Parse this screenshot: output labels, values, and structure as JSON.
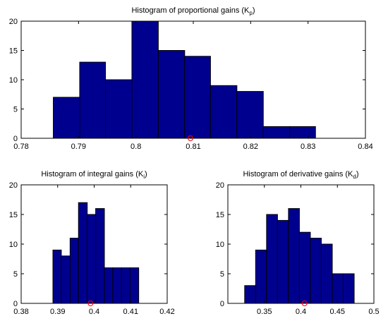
{
  "colors": {
    "bar": "#00008f",
    "bar_edge": "#000000",
    "marker": "#ff0000"
  },
  "chart_data": [
    {
      "type": "bar",
      "title_main": "Histogram of proportional gains (K",
      "title_sub": "p",
      "title_end": ")",
      "xlim": [
        0.78,
        0.84
      ],
      "ylim": [
        0,
        20
      ],
      "xticks": [
        0.78,
        0.79,
        0.8,
        0.81,
        0.82,
        0.83,
        0.84
      ],
      "xtick_labels": [
        "0.78",
        "0.79",
        "0.8",
        "0.81",
        "0.82",
        "0.83",
        "0.84"
      ],
      "yticks": [
        0,
        5,
        10,
        15,
        20
      ],
      "ytick_labels": [
        "0",
        "5",
        "10",
        "15",
        "20"
      ],
      "bin_edges": [
        0.7856,
        0.7902,
        0.7947,
        0.7993,
        0.8039,
        0.8085,
        0.813,
        0.8176,
        0.8222,
        0.8268,
        0.8313
      ],
      "values": [
        7,
        13,
        10,
        20,
        15,
        14,
        9,
        8,
        2,
        2
      ],
      "marker_x": 0.8095
    },
    {
      "type": "bar",
      "title_main": "Histogram of integral gains (K",
      "title_sub": "i",
      "title_end": ")",
      "xlim": [
        0.38,
        0.42
      ],
      "ylim": [
        0,
        20
      ],
      "xticks": [
        0.38,
        0.39,
        0.4,
        0.41,
        0.42
      ],
      "xtick_labels": [
        "0.38",
        "0.39",
        "0.4",
        "0.41",
        "0.42"
      ],
      "yticks": [
        0,
        5,
        10,
        15,
        20
      ],
      "ytick_labels": [
        "0",
        "5",
        "10",
        "15",
        "20"
      ],
      "bin_edges": [
        0.3887,
        0.391,
        0.3934,
        0.3957,
        0.3981,
        0.4004,
        0.4028,
        0.4051,
        0.4075,
        0.4098,
        0.4122
      ],
      "values": [
        9,
        8,
        11,
        17,
        15,
        16,
        6,
        6,
        6,
        6
      ],
      "marker_x": 0.399
    },
    {
      "type": "bar",
      "title_main": "Histogram of derivative gains (K",
      "title_sub": "d",
      "title_end": ")",
      "xlim": [
        0.3,
        0.5
      ],
      "ylim": [
        0,
        20
      ],
      "xticks": [
        0.35,
        0.4,
        0.45,
        0.5
      ],
      "xtick_labels": [
        "0.35",
        "0.4",
        "0.45",
        "0.5"
      ],
      "yticks": [
        0,
        5,
        10,
        15,
        20
      ],
      "ytick_labels": [
        "0",
        "5",
        "10",
        "15",
        "20"
      ],
      "bin_edges": [
        0.323,
        0.338,
        0.353,
        0.368,
        0.383,
        0.398,
        0.413,
        0.428,
        0.443,
        0.458,
        0.473
      ],
      "values": [
        3,
        9,
        15,
        14,
        16,
        12,
        11,
        10,
        5,
        5
      ],
      "marker_x": 0.405
    }
  ]
}
